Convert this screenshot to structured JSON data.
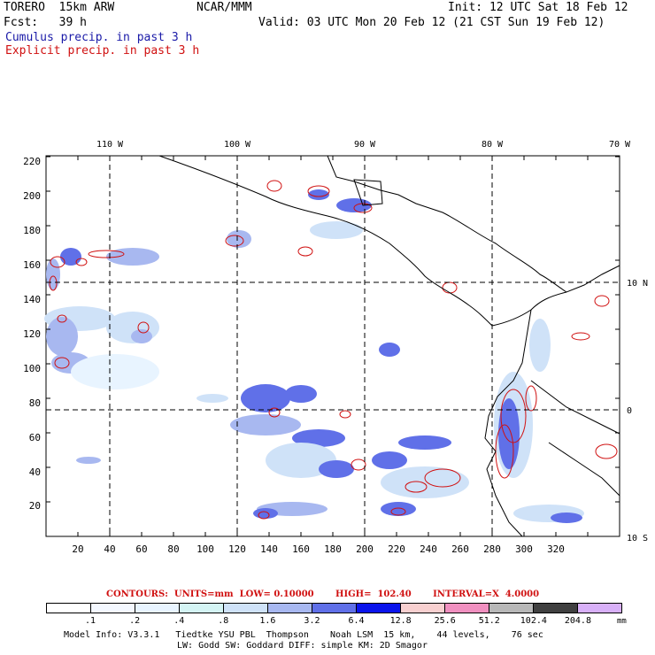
{
  "header": {
    "model": "TORERO  15km ARW",
    "org": "NCAR/MMM",
    "init": "Init: 12 UTC Sat 18 Feb 12",
    "fcst": "Fcst:   39 h",
    "valid": "Valid: 03 UTC Mon 20 Feb 12 (21 CST Sun 19 Feb 12)",
    "cumulus": "Cumulus precip. in past 3 h",
    "explicit": "Explicit precip. in past 3 h"
  },
  "map": {
    "top_lon_labels": [
      "110 W",
      "100 W",
      "90 W",
      "80 W",
      "70 W"
    ],
    "right_lat_labels": [
      "10 N",
      "0",
      "10 S"
    ],
    "x_ticks": [
      "20",
      "40",
      "60",
      "80",
      "100",
      "120",
      "140",
      "160",
      "180",
      "200",
      "220",
      "240",
      "260",
      "280",
      "300",
      "320"
    ],
    "y_ticks": [
      "20",
      "40",
      "60",
      "80",
      "100",
      "120",
      "140",
      "160",
      "180",
      "200",
      "220"
    ]
  },
  "legend": {
    "contours": "CONTOURS:  UNITS=mm  LOW= 0.10000       HIGH=  102.40       INTERVAL=X  4.0000",
    "levels": [
      ".1",
      ".2",
      ".4",
      ".8",
      "1.6",
      "3.2",
      "6.4",
      "12.8",
      "25.6",
      "51.2",
      "102.4",
      "204.8"
    ],
    "unit": "mm",
    "colors": [
      "#ffffff",
      "#f4f8ff",
      "#e8f4ff",
      "#d4f4f4",
      "#cfe2f8",
      "#a8b8f0",
      "#6070e8",
      "#0a14ec",
      "#f8d0d0",
      "#f090c0",
      "#b8b8b8",
      "#404040",
      "#d8b0f8"
    ]
  },
  "footer": {
    "line1": "Model Info: V3.3.1   Tiedtke YSU PBL  Thompson    Noah LSM  15 km,    44 levels,    76 sec",
    "line2": "LW: Godd SW: Goddard DIFF: simple KM: 2D Smagor"
  }
}
